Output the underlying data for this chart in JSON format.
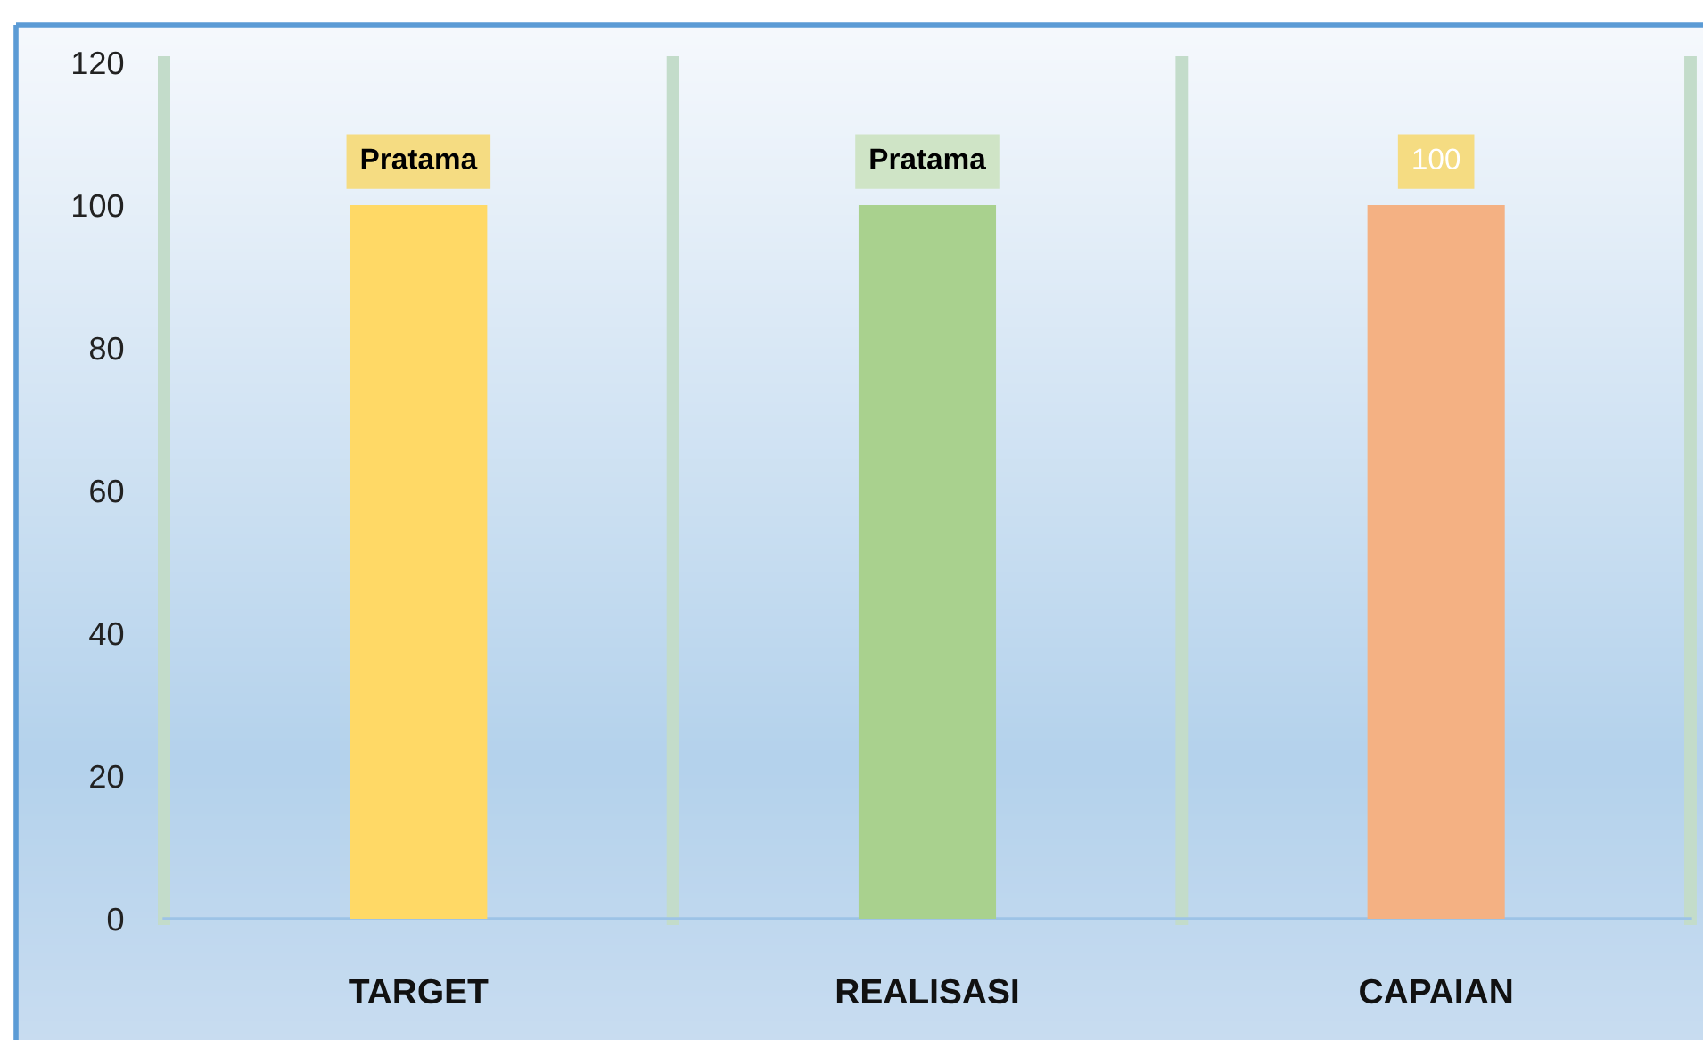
{
  "chart_data": {
    "type": "bar",
    "categories": [
      "TARGET",
      "REALISASI",
      "CAPAIAN"
    ],
    "values": [
      100,
      100,
      100
    ],
    "colors": [
      "#ffd966",
      "#a9d18e",
      "#f4b183"
    ],
    "value_labels": [
      "Pratama",
      "Pratama",
      "100"
    ],
    "ylim": [
      0,
      120
    ],
    "yticks": [
      0,
      20,
      40,
      60,
      80,
      100,
      120
    ],
    "grid": "x"
  }
}
